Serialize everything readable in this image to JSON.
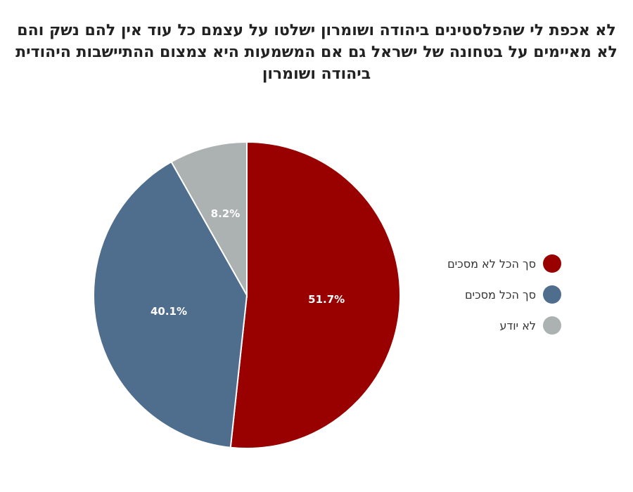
{
  "chart_data": {
    "type": "pie",
    "title": "לא אכפת לי שהפלסטינים ביהודה ושומרון ישלטו על עצמם כל עוד אין להם נשק והם לא מאיימים על בטחונה של ישראל גם אם המשמעות היא צמצום ההתיישבות היהודית ביהודה ושומרון",
    "slices": [
      {
        "label": "סך הכל לא מסכים",
        "value": 51.7,
        "display": "51.7%",
        "color": "#990000"
      },
      {
        "label": "סך הכל מסכים",
        "value": 40.1,
        "display": "40.1%",
        "color": "#4f6d8d"
      },
      {
        "label": "לא יודע",
        "value": 8.2,
        "display": "8.2%",
        "color": "#abb2b1"
      }
    ],
    "legend_position": "right"
  }
}
